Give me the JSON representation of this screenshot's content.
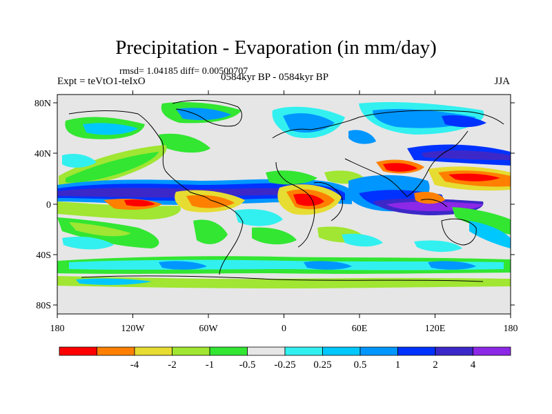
{
  "header": {
    "title": "Precipitation - Evaporation (in mm/day)",
    "stats": "rmsd= 1.04185 diff= 0.00500707",
    "experiment": "Expt = teVtO1-teIxO",
    "period": "0584kyr BP - 0584kyr BP",
    "season": "JJA"
  },
  "map": {
    "background_color": "#e6e6e6",
    "coast_color": "#000000",
    "lat_ticks": [
      "80N",
      "40N",
      "0",
      "40S",
      "80S"
    ],
    "lon_ticks": [
      "180",
      "120W",
      "60W",
      "0",
      "60E",
      "120E",
      "180"
    ]
  },
  "colorbar": {
    "colors": [
      "#ff0000",
      "#ff8000",
      "#e6dc32",
      "#a0e632",
      "#32e632",
      "#e6e6e6",
      "#32f0f0",
      "#00c8ff",
      "#0096ff",
      "#0032ff",
      "#3c28c8",
      "#8c28e6"
    ],
    "labels": [
      "-4",
      "-2",
      "-1",
      "-0.5",
      "-0.25",
      "0.25",
      "0.5",
      "1",
      "2",
      "4"
    ]
  }
}
